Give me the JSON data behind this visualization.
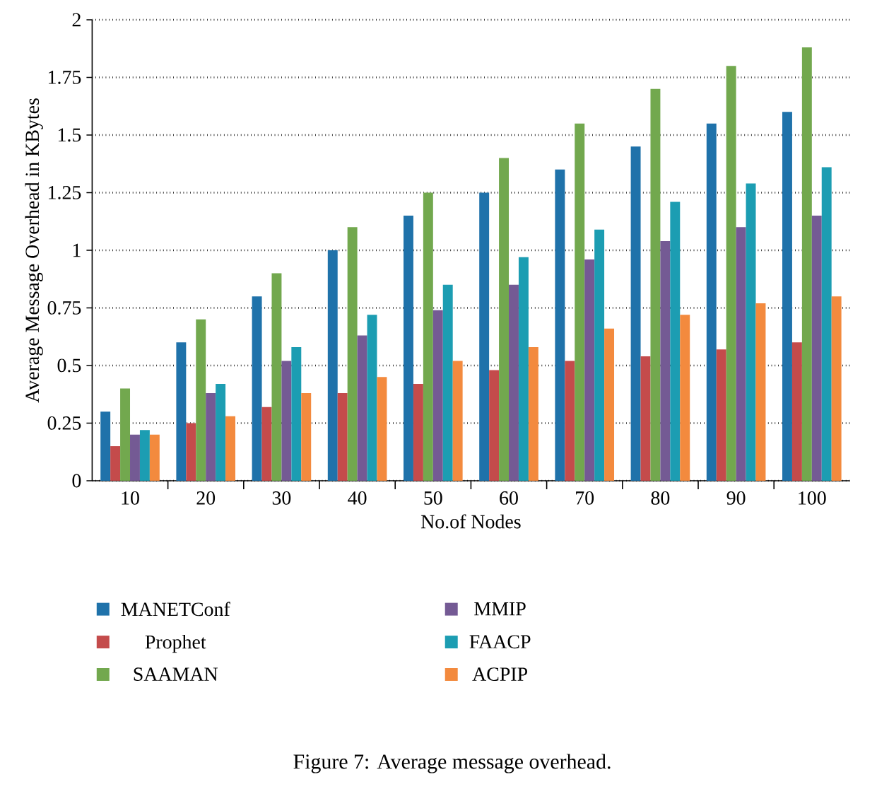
{
  "chart_data": {
    "type": "bar",
    "xlabel": "No.of Nodes",
    "ylabel": "Average Message Overhead in KBytes",
    "categories": [
      "10",
      "20",
      "30",
      "40",
      "50",
      "60",
      "70",
      "80",
      "90",
      "100"
    ],
    "series": [
      {
        "name": "MANETConf",
        "color": "#1f72aa",
        "values": [
          0.3,
          0.6,
          0.8,
          1.0,
          1.15,
          1.25,
          1.35,
          1.45,
          1.55,
          1.6
        ]
      },
      {
        "name": "Prophet",
        "color": "#c44b4b",
        "values": [
          0.15,
          0.25,
          0.32,
          0.38,
          0.42,
          0.48,
          0.52,
          0.54,
          0.57,
          0.6
        ]
      },
      {
        "name": "SAAMAN",
        "color": "#72a84e",
        "values": [
          0.4,
          0.7,
          0.9,
          1.1,
          1.25,
          1.4,
          1.55,
          1.7,
          1.8,
          1.88
        ]
      },
      {
        "name": "MMIP",
        "color": "#745a94",
        "values": [
          0.2,
          0.38,
          0.52,
          0.63,
          0.74,
          0.85,
          0.96,
          1.04,
          1.1,
          1.15
        ]
      },
      {
        "name": "FAACP",
        "color": "#1c9db2",
        "values": [
          0.22,
          0.42,
          0.58,
          0.72,
          0.85,
          0.97,
          1.09,
          1.21,
          1.29,
          1.36
        ]
      },
      {
        "name": "ACPIP",
        "color": "#f38a3e",
        "values": [
          0.2,
          0.28,
          0.38,
          0.45,
          0.52,
          0.58,
          0.66,
          0.72,
          0.77,
          0.8
        ]
      }
    ],
    "ylim": [
      0,
      2
    ],
    "yticks": [
      0,
      0.25,
      0.5,
      0.75,
      1,
      1.25,
      1.5,
      1.75,
      2
    ],
    "grid": "y",
    "legend": "bottom",
    "annotations": [
      "Figure 7: Average message overhead."
    ]
  }
}
